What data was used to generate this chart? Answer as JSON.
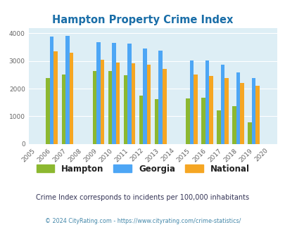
{
  "title": "Hampton Property Crime Index",
  "years": [
    2006,
    2007,
    2009,
    2010,
    2011,
    2012,
    2013,
    2015,
    2016,
    2017,
    2018,
    2019
  ],
  "hampton": [
    2380,
    2510,
    2640,
    2640,
    2490,
    1740,
    1610,
    1640,
    1660,
    1200,
    1360,
    790
  ],
  "georgia": [
    3880,
    3900,
    3670,
    3650,
    3620,
    3450,
    3370,
    3010,
    3010,
    2870,
    2590,
    2390
  ],
  "national": [
    3360,
    3290,
    3040,
    2950,
    2920,
    2870,
    2720,
    2510,
    2470,
    2370,
    2200,
    2110
  ],
  "hampton_color": "#8cb830",
  "georgia_color": "#4da6f5",
  "national_color": "#f5a623",
  "bg_color": "#ddeef5",
  "xlim": [
    2004.5,
    2020.5
  ],
  "ylim": [
    0,
    4200
  ],
  "yticks": [
    0,
    1000,
    2000,
    3000,
    4000
  ],
  "xticks": [
    2005,
    2006,
    2007,
    2008,
    2009,
    2010,
    2011,
    2012,
    2013,
    2014,
    2015,
    2016,
    2017,
    2018,
    2019,
    2020
  ],
  "bar_width": 0.25,
  "subtitle": "Crime Index corresponds to incidents per 100,000 inhabitants",
  "footer": "© 2024 CityRating.com - https://www.cityrating.com/crime-statistics/",
  "title_color": "#1a6ea8",
  "subtitle_color": "#333355",
  "footer_color": "#4488aa"
}
